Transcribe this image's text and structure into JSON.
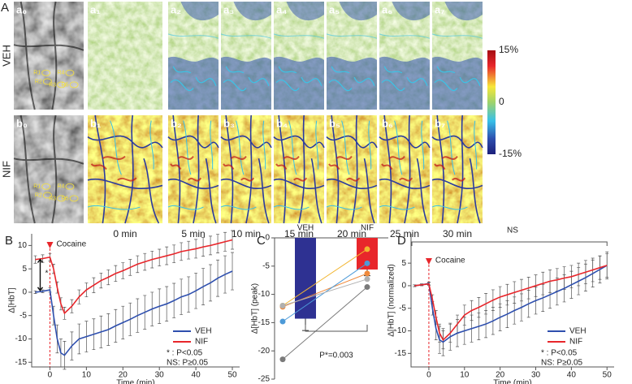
{
  "panel_a": {
    "label": "A",
    "rows": [
      {
        "name": "VEH",
        "labels": [
          "a₀",
          "a₁",
          "a₂",
          "a₃",
          "a₄",
          "a₅",
          "a₆",
          "a₇"
        ],
        "rois": [
          "R1",
          "R2",
          "R3",
          "R4",
          "R5"
        ]
      },
      {
        "name": "NIF",
        "labels": [
          "b₀",
          "b₁",
          "b₂",
          "b₃",
          "b₄",
          "b₅",
          "b₆",
          "b₇"
        ],
        "rois": [
          "R1",
          "R2",
          "R3",
          "R4",
          "R5"
        ]
      }
    ],
    "times": [
      "0 min",
      "5 min",
      "10 min",
      "15 min",
      "20 min",
      "25 min",
      "30 min"
    ],
    "colorbar": {
      "clim": [
        -15,
        15
      ],
      "ticks": [
        {
          "value": 15,
          "label": "15%"
        },
        0,
        {
          "value": -15,
          "label": "-15%"
        }
      ]
    }
  },
  "chart_data": [
    {
      "panel": "B",
      "type": "line",
      "xlabel": "Time (min)",
      "ylabel": "Δ[HbT]",
      "x": [
        -4,
        -2,
        0,
        1,
        2,
        3,
        4,
        6,
        8,
        10,
        12,
        14,
        16,
        18,
        20,
        22,
        24,
        26,
        28,
        30,
        32,
        34,
        36,
        38,
        40,
        42,
        44,
        46,
        48,
        50
      ],
      "series": [
        {
          "name": "VEH",
          "color": "#2e4fae",
          "values": [
            0,
            0.2,
            0.5,
            -5,
            -10,
            -13,
            -13.5,
            -11.5,
            -10,
            -9.5,
            -9,
            -8.5,
            -8,
            -7.2,
            -6.5,
            -5.8,
            -5,
            -4.3,
            -3.6,
            -3,
            -2.5,
            -1.8,
            -1,
            -0.5,
            0.3,
            1.2,
            2,
            3,
            3.8,
            4.5
          ],
          "errors": [
            0.3,
            0.3,
            0.5,
            2,
            3,
            3,
            3,
            3,
            3.2,
            3.3,
            3.3,
            3.4,
            3.4,
            3.5,
            3.5,
            3.5,
            3.6,
            3.6,
            3.6,
            3.7,
            3.7,
            3.7,
            3.8,
            3.8,
            3.8,
            3.9,
            3.9,
            3.9,
            4,
            4
          ]
        },
        {
          "name": "NIF",
          "color": "#e8262b",
          "values": [
            7,
            7.2,
            7.5,
            5,
            1,
            -2.5,
            -4.5,
            -3,
            -1,
            0.5,
            1.5,
            2.5,
            3.2,
            4,
            4.6,
            5.3,
            6,
            6.5,
            7,
            7.4,
            7.8,
            8.2,
            8.7,
            9,
            9.3,
            9.7,
            10,
            10.4,
            10.8,
            11.2
          ],
          "errors": [
            0.8,
            0.8,
            0.8,
            1,
            1.2,
            1.3,
            1.3,
            1.4,
            1.5,
            1.5,
            1.6,
            1.6,
            1.6,
            1.7,
            1.7,
            1.7,
            1.8,
            1.8,
            1.8,
            1.8,
            1.9,
            1.9,
            1.9,
            1.9,
            2,
            2,
            2,
            2,
            2,
            2
          ]
        }
      ],
      "xlim": [
        -5,
        52
      ],
      "ylim": [
        -16,
        12.5
      ],
      "xticks": [
        0,
        10,
        20,
        30,
        40,
        50
      ],
      "yticks": [
        -15,
        -10,
        -5,
        0,
        5,
        10
      ],
      "event": {
        "label": "Cocaine",
        "x": 0,
        "color": "#e8262b"
      },
      "significance_marker": "*",
      "notes": [
        "* : P<0.05",
        "NS: P≥0.05"
      ],
      "legend": "lower right"
    },
    {
      "panel": "C",
      "type": "bar",
      "ylabel": "Δ[HbT] (peak)",
      "categories": [
        "VEH",
        "NIF"
      ],
      "values": [
        -14.3,
        -5.6
      ],
      "errors": [
        2.1,
        1.1
      ],
      "colors": [
        "#2e3192",
        "#e8262b"
      ],
      "ylim": [
        -25,
        0
      ],
      "yticks": [
        -25,
        -20,
        -15,
        -10,
        -5,
        0
      ],
      "paired": [
        {
          "color": "#f2b530",
          "values": [
            -12,
            -2
          ]
        },
        {
          "color": "#f08a3c",
          "values": [
            -12.2,
            -6.3
          ]
        },
        {
          "color": "#4d9ad8",
          "values": [
            -14.8,
            -4.5
          ]
        },
        {
          "color": "#b0b0b0",
          "values": [
            -12,
            -7.3
          ]
        },
        {
          "color": "#7a7a7a",
          "values": [
            -21.5,
            -8.7
          ]
        }
      ],
      "annotation": "P*=0.003"
    },
    {
      "panel": "D",
      "type": "line",
      "xlabel": "Time (min)",
      "ylabel": "Δ[HbT] (normalized)",
      "x": [
        -4,
        -2,
        0,
        1,
        2,
        3,
        4,
        6,
        8,
        10,
        12,
        14,
        16,
        18,
        20,
        22,
        24,
        26,
        28,
        30,
        32,
        34,
        36,
        38,
        40,
        42,
        44,
        46,
        48,
        50
      ],
      "series": [
        {
          "name": "VEH",
          "color": "#2e4fae",
          "values": [
            0,
            0.2,
            0.5,
            -5,
            -9.5,
            -12,
            -12.5,
            -11.3,
            -10.5,
            -10,
            -9.5,
            -9,
            -8.5,
            -7.8,
            -7,
            -6.3,
            -5.5,
            -4.8,
            -4,
            -3.3,
            -2.7,
            -2,
            -1.3,
            -0.6,
            0.2,
            1,
            1.8,
            2.7,
            3.6,
            4.5
          ],
          "errors": [
            0.2,
            0.2,
            0.3,
            1.5,
            2.5,
            3,
            3,
            3,
            3,
            3,
            3,
            3,
            3,
            3,
            3,
            3,
            3,
            3,
            3,
            3,
            3,
            3,
            3,
            3,
            3,
            3,
            3,
            3,
            3,
            3
          ]
        },
        {
          "name": "NIF",
          "color": "#e8262b",
          "values": [
            0,
            0.2,
            0.4,
            -3,
            -7,
            -10.5,
            -12,
            -10.5,
            -8.5,
            -6.5,
            -5.5,
            -4.8,
            -4,
            -3.2,
            -2.5,
            -2,
            -1.5,
            -1,
            -0.5,
            0,
            0.5,
            1,
            1.3,
            1.7,
            2,
            2.5,
            3,
            3.5,
            4,
            4.5
          ],
          "errors": [
            0.2,
            0.2,
            0.3,
            1,
            1.5,
            2,
            2,
            2,
            2,
            2.2,
            2.2,
            2.2,
            2.3,
            2.3,
            2.3,
            2.3,
            2.4,
            2.4,
            2.4,
            2.4,
            2.5,
            2.5,
            2.5,
            2.5,
            2.5,
            2.5,
            2.6,
            2.6,
            2.6,
            2.6
          ]
        }
      ],
      "xlim": [
        -5,
        52
      ],
      "ylim": [
        -18,
        11.5
      ],
      "xticks": [
        0,
        10,
        20,
        30,
        40,
        50
      ],
      "yticks": [
        -15,
        -10,
        -5,
        0,
        5
      ],
      "event": {
        "label": "Cocaine",
        "x": 0,
        "color": "#e8262b"
      },
      "bracket_label": "NS",
      "notes": [
        "* : P<0.05",
        "NS: P≥0.05"
      ],
      "legend": "lower right"
    }
  ]
}
